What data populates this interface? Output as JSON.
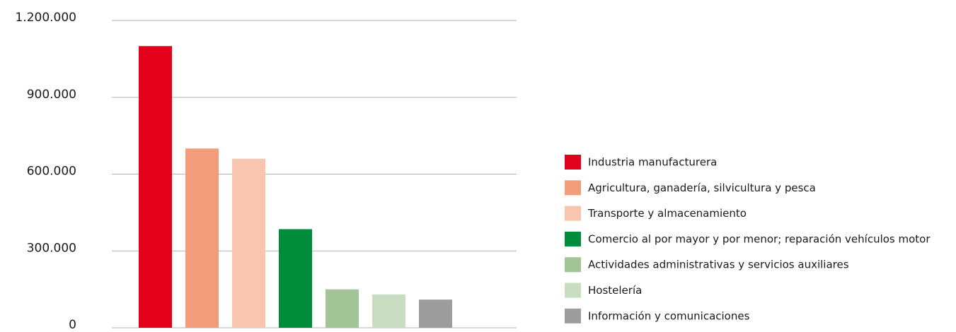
{
  "chart_data": {
    "type": "bar",
    "categories": [
      "Industria manufacturera",
      "Agricultura, ganadería, silvicultura y pesca",
      "Transporte y almacenamiento",
      "Comercio al por mayor y por menor; reparación vehículos motor",
      "Actividades administrativas y servicios auxiliares",
      "Hostelería",
      "Información y comunicaciones"
    ],
    "values": [
      1100000,
      700000,
      660000,
      385000,
      150000,
      130000,
      110000
    ],
    "colors": [
      "#e2001a",
      "#f39c7c",
      "#f8c6ae",
      "#008c3a",
      "#a3c494",
      "#c9ddc2",
      "#9d9d9d"
    ],
    "ylim": [
      0,
      1200000
    ],
    "yticks": [
      0,
      {
        "value": 300000,
        "label": "300.000"
      },
      {
        "value": 600000,
        "label": "600.000"
      },
      {
        "value": 900000,
        "label": "900.000"
      },
      {
        "value": 1200000,
        "label": "1.200.000"
      }
    ],
    "grid": true,
    "legend": "right"
  }
}
